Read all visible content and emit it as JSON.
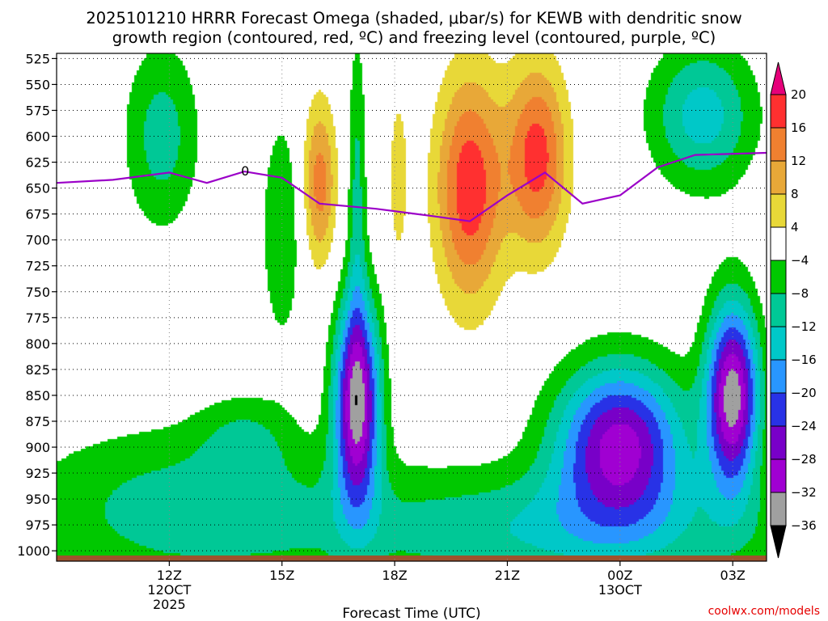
{
  "chart_data": {
    "type": "heatmap",
    "title_lines": [
      "2025101210 HRRR Forecast Omega (shaded, μbar/s) for KEWB with dendritic snow",
      "growth region (contoured, red, ºC) and freezing level (contoured, purple, ºC)"
    ],
    "xlabel": "Forecast Time (UTC)",
    "credit": "coolwx.com/models",
    "y_axis": {
      "ticks": [
        525,
        550,
        575,
        600,
        625,
        650,
        675,
        700,
        725,
        750,
        775,
        800,
        825,
        850,
        875,
        900,
        925,
        950,
        975,
        1000
      ],
      "range": [
        520,
        1010
      ],
      "unit": "hPa"
    },
    "x_axis": {
      "range_hours": [
        9.0,
        27.9
      ],
      "ticks": [
        {
          "hour": 12,
          "lines": [
            "12Z",
            "12OCT",
            "2025"
          ]
        },
        {
          "hour": 15,
          "lines": [
            "15Z"
          ]
        },
        {
          "hour": 18,
          "lines": [
            "18Z"
          ]
        },
        {
          "hour": 21,
          "lines": [
            "21Z"
          ]
        },
        {
          "hour": 24,
          "lines": [
            "00Z",
            "13OCT"
          ]
        },
        {
          "hour": 27,
          "lines": [
            "03Z"
          ]
        }
      ]
    },
    "colorbar": {
      "labels": [
        "20",
        "16",
        "12",
        "8",
        "4",
        "−4",
        "−8",
        "−12",
        "−16",
        "−20",
        "−24",
        "−28",
        "−32",
        "−36"
      ],
      "levels": [
        {
          "range": [
            16,
            20
          ],
          "color": "#ff3030"
        },
        {
          "range": [
            12,
            16
          ],
          "color": "#f08030"
        },
        {
          "range": [
            8,
            12
          ],
          "color": "#e8a838"
        },
        {
          "range": [
            4,
            8
          ],
          "color": "#e8d838"
        },
        {
          "range": [
            -4,
            4
          ],
          "color": "#ffffff"
        },
        {
          "range": [
            -8,
            -4
          ],
          "color": "#00c800"
        },
        {
          "range": [
            -12,
            -8
          ],
          "color": "#00c896"
        },
        {
          "range": [
            -16,
            -12
          ],
          "color": "#00c8c8"
        },
        {
          "range": [
            -20,
            -16
          ],
          "color": "#2896ff"
        },
        {
          "range": [
            -24,
            -20
          ],
          "color": "#2832e6"
        },
        {
          "range": [
            -28,
            -24
          ],
          "color": "#7800c8"
        },
        {
          "range": [
            -32,
            -28
          ],
          "color": "#a000d2"
        },
        {
          "range": [
            -36,
            -32
          ],
          "color": "#a0a0a0"
        }
      ],
      "over_color": "#e6007a",
      "under_color": "#000000"
    },
    "freezing_level": {
      "label": "0",
      "color": "#9b00c8",
      "points": [
        {
          "hour": 9.0,
          "p": 645
        },
        {
          "hour": 10.5,
          "p": 642
        },
        {
          "hour": 12.0,
          "p": 635
        },
        {
          "hour": 13.0,
          "p": 645
        },
        {
          "hour": 14.0,
          "p": 634
        },
        {
          "hour": 15.0,
          "p": 640
        },
        {
          "hour": 16.0,
          "p": 665
        },
        {
          "hour": 17.5,
          "p": 670
        },
        {
          "hour": 19.0,
          "p": 677
        },
        {
          "hour": 20.0,
          "p": 682
        },
        {
          "hour": 21.0,
          "p": 657
        },
        {
          "hour": 22.0,
          "p": 635
        },
        {
          "hour": 23.0,
          "p": 665
        },
        {
          "hour": 24.0,
          "p": 657
        },
        {
          "hour": 25.0,
          "p": 630
        },
        {
          "hour": 26.0,
          "p": 618
        },
        {
          "hour": 27.9,
          "p": 616
        }
      ]
    },
    "omega_blobs": [
      {
        "hour": 11.8,
        "p": 600,
        "rx": 1.0,
        "ry": 90,
        "v": -10
      },
      {
        "hour": 12.5,
        "p": 960,
        "rx": 4.5,
        "ry": 80,
        "v": -10
      },
      {
        "hour": 14.0,
        "p": 890,
        "rx": 1.2,
        "ry": 40,
        "v": -6
      },
      {
        "hour": 15.0,
        "p": 690,
        "rx": 0.55,
        "ry": 110,
        "v": -8
      },
      {
        "hour": 16.0,
        "p": 645,
        "rx": 0.45,
        "ry": 80,
        "v": 14
      },
      {
        "hour": 17.0,
        "p": 855,
        "rx": 0.6,
        "ry": 100,
        "v": -34
      },
      {
        "hour": 17.0,
        "p": 650,
        "rx": 0.25,
        "ry": 150,
        "v": -9
      },
      {
        "hour": 18.1,
        "p": 640,
        "rx": 0.25,
        "ry": 80,
        "v": 7
      },
      {
        "hour": 20.0,
        "p": 650,
        "rx": 0.9,
        "ry": 110,
        "v": 19
      },
      {
        "hour": 21.8,
        "p": 620,
        "rx": 0.8,
        "ry": 90,
        "v": 18
      },
      {
        "hour": 24.0,
        "p": 895,
        "rx": 1.7,
        "ry": 75,
        "v": -29
      },
      {
        "hour": 27.0,
        "p": 850,
        "rx": 0.7,
        "ry": 90,
        "v": -34
      },
      {
        "hour": 26.2,
        "p": 580,
        "rx": 1.4,
        "ry": 70,
        "v": -14
      },
      {
        "hour": 22.5,
        "p": 980,
        "rx": 6.0,
        "ry": 60,
        "v": -12
      }
    ]
  }
}
